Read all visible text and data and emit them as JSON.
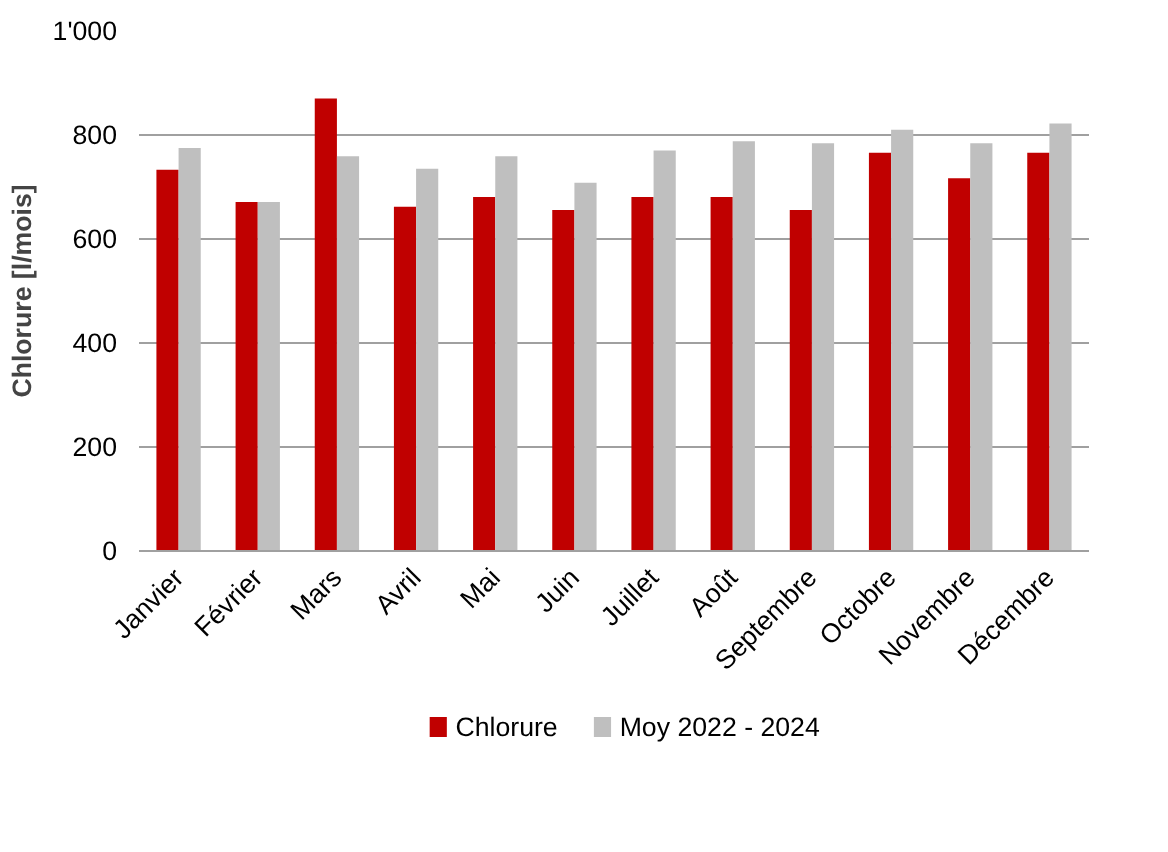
{
  "chart_data": {
    "type": "bar",
    "ylabel": "Chlorure [l/mois]",
    "categories": [
      "Janvier",
      "Février",
      "Mars",
      "Avril",
      "Mai",
      "Juin",
      "Juillet",
      "Août",
      "Septembre",
      "Octobre",
      "Novembre",
      "Décembre"
    ],
    "series": [
      {
        "name": "Chlorure",
        "color": "#c00000",
        "values": [
          733,
          671,
          870,
          662,
          681,
          656,
          681,
          681,
          656,
          766,
          717,
          766
        ]
      },
      {
        "name": "Moy 2022 - 2024",
        "color": "#bfbfbf",
        "values": [
          775,
          671,
          759,
          735,
          759,
          708,
          770,
          788,
          784,
          810,
          784,
          822
        ]
      }
    ],
    "ylim": [
      0,
      1000
    ],
    "yticks": [
      0,
      200,
      400,
      600,
      800,
      {
        "value": 1000,
        "label": "1'000"
      }
    ],
    "grid": "y",
    "legend": "bottom"
  }
}
